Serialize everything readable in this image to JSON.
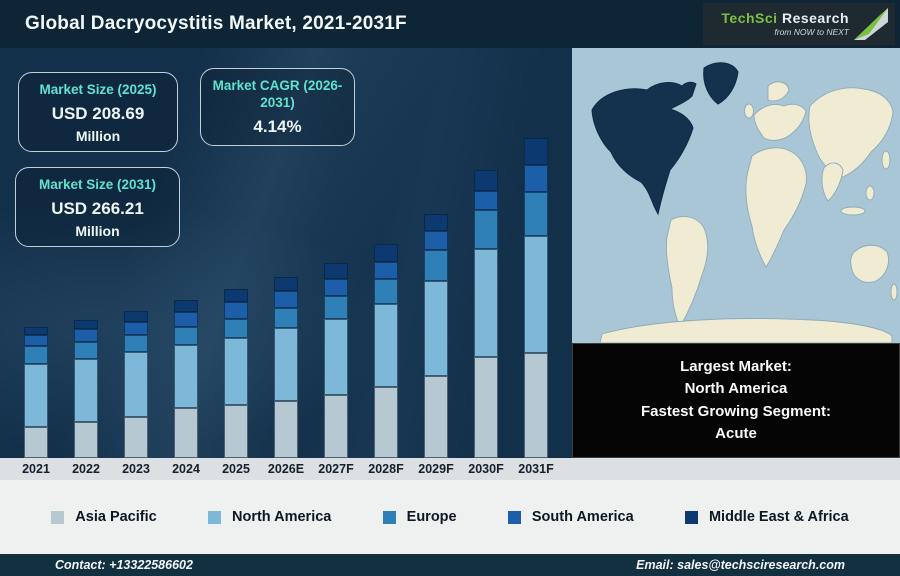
{
  "header": {
    "title": "Global Dacryocystitis Market, 2021-2031F",
    "logo": {
      "brand_primary": "TechSci",
      "brand_secondary": "Research",
      "tagline": "from NOW to NEXT"
    }
  },
  "stat_boxes": [
    {
      "label": "Market Size (2025)",
      "value": "USD 208.69",
      "unit": "Million"
    },
    {
      "label": "Market CAGR (2026-2031)",
      "value": "4.14%",
      "unit": ""
    },
    {
      "label": "Market Size (2031)",
      "value": "USD 266.21",
      "unit": "Million"
    }
  ],
  "chart_data": {
    "type": "bar",
    "stacked": true,
    "title": "Global Dacryocystitis Market, 2021-2031F",
    "xlabel": "",
    "ylabel": "",
    "grid": false,
    "legend_position": "bottom",
    "values_unit": "relative segment height in px (chart has no value axis)",
    "categories": [
      "2021",
      "2022",
      "2023",
      "2024",
      "2025",
      "2026E",
      "2027F",
      "2028F",
      "2029F",
      "2030F",
      "2031F"
    ],
    "series": [
      {
        "name": "Asia Pacific",
        "color": "#b6c8d2",
        "values": [
          31,
          36,
          41,
          50,
          53,
          57,
          63,
          71,
          82,
          101,
          105
        ]
      },
      {
        "name": "North America",
        "color": "#7db8d8",
        "values": [
          63,
          63,
          65,
          63,
          67,
          73,
          76,
          83,
          95,
          108,
          117
        ]
      },
      {
        "name": "Europe",
        "color": "#3080b8",
        "values": [
          18,
          17,
          17,
          18,
          19,
          20,
          23,
          25,
          31,
          39,
          44
        ]
      },
      {
        "name": "South America",
        "color": "#1c5fa8",
        "values": [
          11,
          13,
          13,
          15,
          17,
          17,
          17,
          17,
          19,
          19,
          27
        ]
      },
      {
        "name": "Middle East & Africa",
        "color": "#0c3a70",
        "values": [
          8,
          9,
          11,
          12,
          13,
          14,
          16,
          18,
          17,
          21,
          27
        ]
      }
    ],
    "annotations": {
      "market_size_2025_usd_million": 208.69,
      "market_size_2031_usd_million": 266.21,
      "cagr_2026_2031_percent": 4.14
    }
  },
  "map_panel": {
    "highlighted_region": "North America",
    "ocean_color": "#a9c6d6",
    "land_color": "#f0ecd4",
    "highlight_color": "#14314e"
  },
  "callout_box": {
    "lines": [
      "Largest Market:",
      "North America",
      "Fastest Growing Segment:",
      "Acute"
    ]
  },
  "footer": {
    "contact": "Contact: +13322586602",
    "email": "Email: sales@techsciresearch.com"
  },
  "colors": {
    "titlebar_bg": "#0d2535",
    "chart_bg": "#13304a",
    "stat_label_teal": "#5fe3cd",
    "axis_strip_bg": "#dce0e3",
    "legend_bg": "#eff1f1",
    "footer_bg": "#12303f",
    "callout_bg": "#050505",
    "logo_green": "#7ac043"
  }
}
